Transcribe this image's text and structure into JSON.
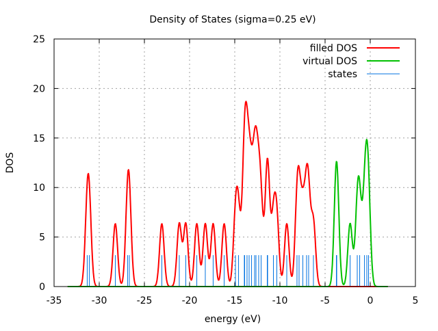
{
  "chart_data": {
    "type": "line",
    "title": "Density of States (sigma=0.25 eV)",
    "xlabel": "energy (eV)",
    "ylabel": "DOS",
    "xlim": [
      -35,
      5
    ],
    "ylim": [
      0,
      25
    ],
    "grid": true,
    "legend_position": "top-right",
    "sigma": 0.25,
    "gaussian_peak": 6.35,
    "state_marker_height": 3.17,
    "x_ticks": [
      -35,
      -30,
      -25,
      -20,
      -15,
      -10,
      -5,
      0,
      5
    ],
    "y_ticks": [
      0,
      5,
      10,
      15,
      20,
      25
    ],
    "curve_range": [
      -33.5,
      2.0
    ],
    "series": [
      {
        "name": "filled DOS",
        "color": "#ff0000",
        "states": [
          -31.33,
          -31.1,
          -28.22,
          -26.86,
          -26.67,
          -23.07,
          -21.14,
          -20.42,
          -19.2,
          -18.26,
          -17.39,
          -16.17,
          -14.92,
          -14.58,
          -13.94,
          -13.9,
          -13.64,
          -13.41,
          -13.14,
          -12.8,
          -12.65,
          -12.35,
          -12.08,
          -11.4,
          -11.36,
          -10.72,
          -10.34,
          -9.24,
          -8.11,
          -7.88,
          -7.46,
          -7.05,
          -6.82,
          -6.29
        ]
      },
      {
        "name": "virtual DOS",
        "color": "#00c000",
        "states": [
          -3.75,
          -3.71,
          -2.23,
          -1.44,
          -1.17,
          -0.64,
          -0.38,
          -0.19
        ]
      },
      {
        "name": "states",
        "color": "#0072e0"
      }
    ]
  }
}
